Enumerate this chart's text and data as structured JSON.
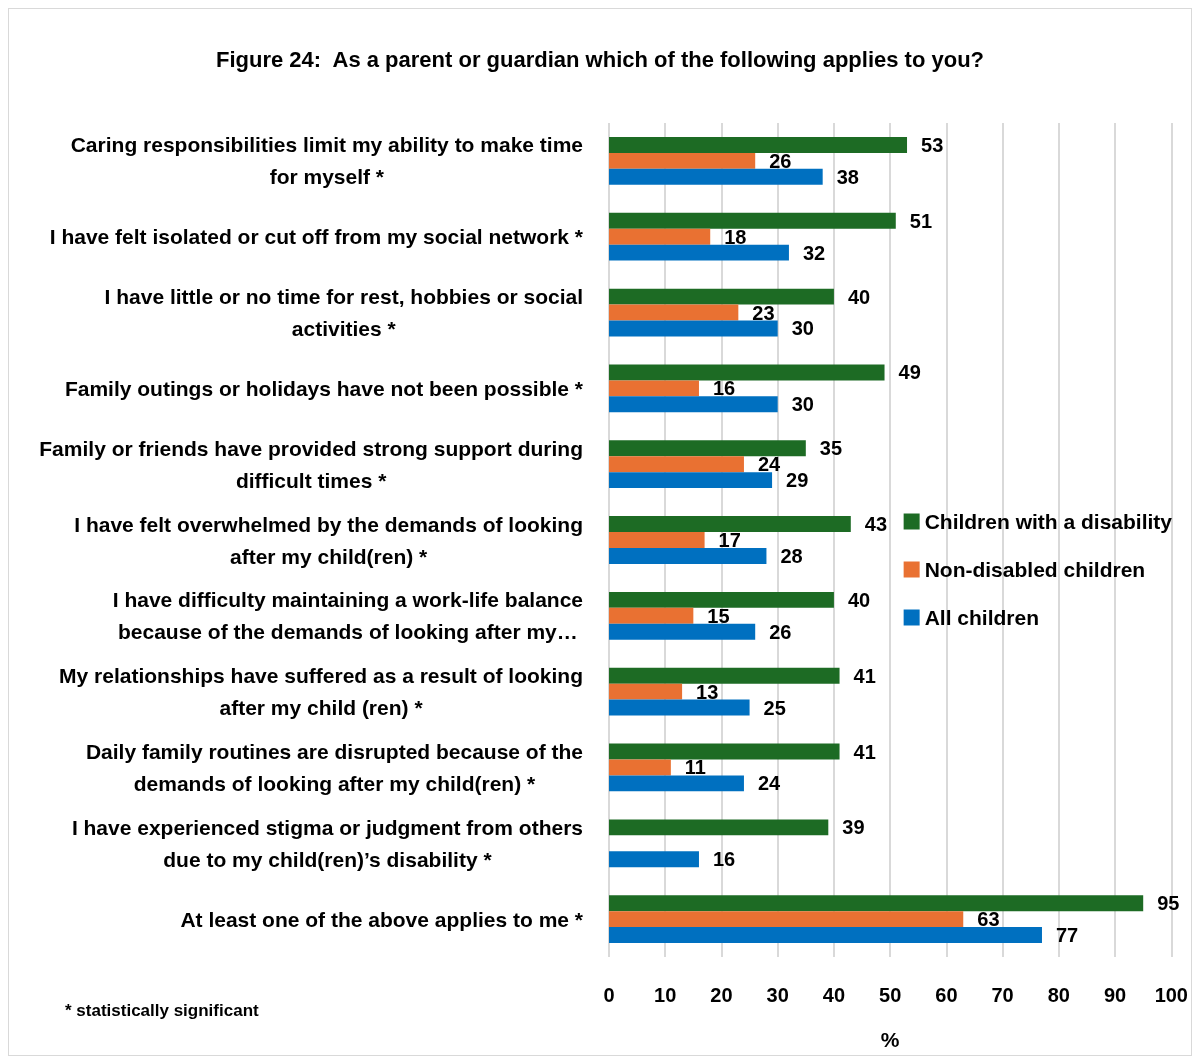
{
  "chart_data": {
    "type": "bar",
    "orientation": "horizontal",
    "title": "Figure 24:  As a parent or guardian which of the following applies to you?",
    "xlabel": "%",
    "annotations": [
      "* statistically significant"
    ],
    "categories": [
      "Caring responsibilities limit my ability to make time for myself *",
      "I have felt isolated or cut off from my social network *",
      "I have little or no time for rest, hobbies or social activities *",
      "Family outings or holidays have not been possible *",
      "Family or friends have provided strong support during difficult times *",
      "I have felt overwhelmed by the demands of looking after my child(ren) *",
      "I have difficulty maintaining a work-life balance because of the demands of looking after my…",
      "My relationships have suffered as a result of looking after my child (ren) *",
      "Daily family routines are disrupted because of the demands of looking after my child(ren) *",
      "I have experienced stigma or judgment from others due to my child(ren)’s disability *",
      "At least one of the above applies to me *"
    ],
    "series": [
      {
        "name": "Children with a disability",
        "color": "#1d6b24",
        "values": [
          53,
          51,
          40,
          49,
          35,
          43,
          40,
          41,
          41,
          39,
          95
        ]
      },
      {
        "name": "Non-disabled children",
        "color": "#e97132",
        "values": [
          26,
          18,
          23,
          16,
          24,
          17,
          15,
          13,
          11,
          null,
          63
        ]
      },
      {
        "name": "All children",
        "color": "#0070c0",
        "values": [
          38,
          32,
          30,
          30,
          29,
          28,
          26,
          25,
          24,
          16,
          77
        ]
      }
    ],
    "xlim": [
      0,
      100
    ],
    "xticks": [
      0,
      10,
      20,
      30,
      40,
      50,
      60,
      70,
      80,
      90,
      100
    ],
    "grid": "x",
    "legend": "right",
    "data_labels": true
  }
}
